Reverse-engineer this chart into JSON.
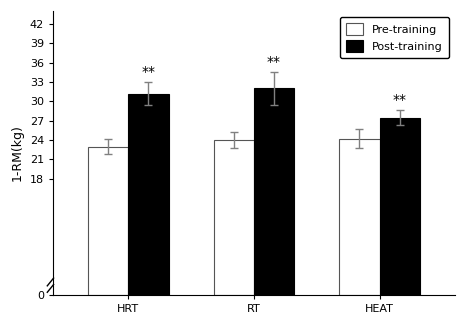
{
  "groups": [
    "HRT",
    "RT",
    "HEAT"
  ],
  "pre_values": [
    23.0,
    24.0,
    24.2
  ],
  "post_values": [
    31.2,
    32.0,
    27.5
  ],
  "pre_errors": [
    1.2,
    1.2,
    1.5
  ],
  "post_errors": [
    1.8,
    2.5,
    1.2
  ],
  "ylabel": "1-RM(kg)",
  "yticks": [
    0,
    18,
    21,
    24,
    27,
    30,
    33,
    36,
    39,
    42
  ],
  "ylim": [
    0,
    44
  ],
  "bar_width": 0.32,
  "pre_color": "white",
  "post_color": "black",
  "pre_edge": "#555555",
  "post_edge": "black",
  "legend_labels": [
    "Pre-training",
    "Post-training"
  ],
  "significance_label": "**",
  "background_color": "white"
}
